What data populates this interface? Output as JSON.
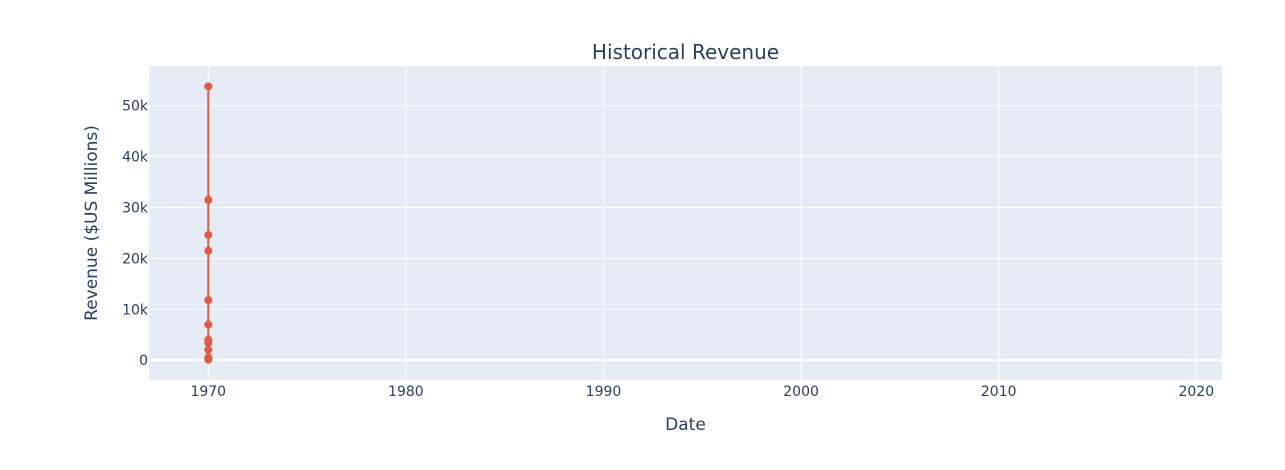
{
  "chart_data": {
    "type": "line",
    "title": "Historical Revenue",
    "xlabel": "Date",
    "ylabel": "Revenue ($US Millions)",
    "x_axis_type": "date",
    "xlim": [
      1967,
      2021.3
    ],
    "ylim": [
      -3900,
      57800
    ],
    "x_ticks": [
      1970,
      1980,
      1990,
      2000,
      2010,
      2020
    ],
    "x_tick_labels": [
      "1970",
      "1980",
      "1990",
      "2000",
      "2010",
      "2020"
    ],
    "y_ticks": [
      0,
      10000,
      20000,
      30000,
      40000,
      50000
    ],
    "y_tick_labels": [
      "0",
      "10k",
      "20k",
      "30k",
      "40k",
      "50k"
    ],
    "grid": true,
    "series": [
      {
        "x": [
          1970,
          1970,
          1970,
          1970,
          1970,
          1970,
          1970,
          1970,
          1970,
          1970,
          1970
        ],
        "values": [
          53800,
          31500,
          24600,
          21500,
          11800,
          7000,
          4000,
          3400,
          2000,
          500,
          100
        ]
      }
    ],
    "colors": {
      "plot_bg": "#e5ecf6",
      "grid": "#ffffff",
      "series": "#e45a3e",
      "text": "#2a3f5f"
    }
  }
}
